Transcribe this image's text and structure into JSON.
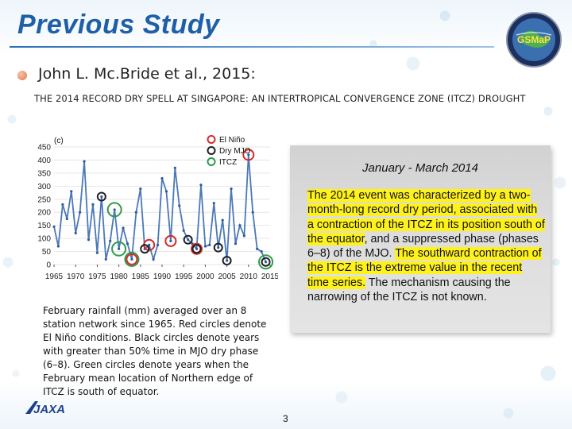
{
  "slide": {
    "title": "Previous Study",
    "logo_text": "GSMaP",
    "footer_logo": "JAXA",
    "page_number": "3"
  },
  "reference": {
    "author": "John L. Mc.Bride et al., 2015:",
    "paper_title": "THE 2014 RECORD DRY SPELL AT SINGAPORE: AN INTERTROPICAL CONVERGENCE ZONE (ITCZ) DROUGHT"
  },
  "chart_data": {
    "type": "line",
    "panel_label": "(c)",
    "x": [
      1965,
      1966,
      1967,
      1968,
      1969,
      1970,
      1971,
      1972,
      1973,
      1974,
      1975,
      1976,
      1977,
      1978,
      1979,
      1980,
      1981,
      1982,
      1983,
      1984,
      1985,
      1986,
      1987,
      1988,
      1989,
      1990,
      1991,
      1992,
      1993,
      1994,
      1995,
      1996,
      1997,
      1998,
      1999,
      2000,
      2001,
      2002,
      2003,
      2004,
      2005,
      2006,
      2007,
      2008,
      2009,
      2010,
      2011,
      2012,
      2013,
      2014
    ],
    "values": [
      145,
      70,
      230,
      175,
      280,
      120,
      200,
      395,
      95,
      230,
      45,
      260,
      20,
      90,
      210,
      60,
      140,
      80,
      20,
      200,
      290,
      60,
      75,
      20,
      75,
      330,
      280,
      90,
      370,
      225,
      130,
      95,
      80,
      60,
      305,
      70,
      75,
      235,
      65,
      170,
      15,
      290,
      80,
      150,
      110,
      420,
      200,
      60,
      50,
      10
    ],
    "xticks": [
      "1965",
      "1970",
      "1975",
      "1980",
      "1985",
      "1990",
      "1995",
      "2000",
      "2005",
      "2010",
      "2015"
    ],
    "yticks": [
      "0",
      "50",
      "100",
      "150",
      "200",
      "250",
      "300",
      "350",
      "400",
      "450"
    ],
    "ylim": [
      0,
      450
    ],
    "legend": [
      {
        "label": "El Niño",
        "color": "#d42a2a"
      },
      {
        "label": "Dry MJO",
        "color": "#202020"
      },
      {
        "label": "ITCZ",
        "color": "#2f9a4a"
      }
    ],
    "el_nino_years": [
      1983,
      1987,
      1992,
      1998,
      2010
    ],
    "dry_mjo_years": [
      1976,
      1986,
      1996,
      1998,
      2003,
      2005,
      2014
    ],
    "itcz_years": [
      1979,
      1980,
      1983,
      2014
    ]
  },
  "caption": "February rainfall (mm) averaged over an 8 station network since 1965. Red circles denote El Niño conditions. Black circles denote years with greater than 50% time in MJO dry phase (6–8). Green circles denote years when the February mean location of Northern edge of ITCZ is south of equator.",
  "textbox": {
    "heading": "January - March 2014",
    "p1": "The 2014 event was characterized by a two-month-long record dry period, associated with a contraction of the ITCZ in its position south of the equator",
    "p2": ", and a suppressed phase (phases 6–8) of the MJO. ",
    "p3": "The southward contraction of the ITCZ is the extreme value in the recent time series.",
    "p4": " The mechanism causing the narrowing of the ITCZ is not known."
  },
  "colors": {
    "title": "#1f5fa8",
    "line": "#4b78b8",
    "highlight": "#fff21a"
  }
}
